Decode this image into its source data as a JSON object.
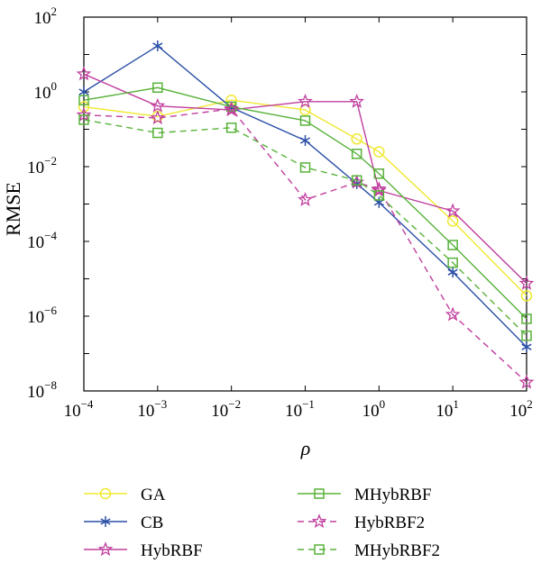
{
  "chart_data": {
    "type": "line",
    "title": "",
    "xlabel": "ρ",
    "ylabel": "RMSE",
    "x_scale": "log",
    "y_scale": "log",
    "xlim": [
      0.0001,
      100
    ],
    "ylim": [
      1e-08,
      100
    ],
    "x_ticks": [
      {
        "base": "10",
        "exp": "−4"
      },
      {
        "base": "10",
        "exp": "−3"
      },
      {
        "base": "10",
        "exp": "−2"
      },
      {
        "base": "10",
        "exp": "−1"
      },
      {
        "base": "10",
        "exp": "0"
      },
      {
        "base": "10",
        "exp": "1"
      },
      {
        "base": "10",
        "exp": "2"
      }
    ],
    "y_ticks": [
      {
        "base": "10",
        "exp": "−8"
      },
      {
        "base": "10",
        "exp": "−6"
      },
      {
        "base": "10",
        "exp": "−4"
      },
      {
        "base": "10",
        "exp": "−2"
      },
      {
        "base": "10",
        "exp": "0"
      },
      {
        "base": "10",
        "exp": "2"
      }
    ],
    "grid": false,
    "legend_position": "bottom",
    "x": [
      0.0001,
      0.001,
      0.01,
      0.1,
      0.5,
      1,
      10,
      100
    ],
    "series": [
      {
        "name": "GA",
        "color": "#f0e832",
        "dash": "solid",
        "marker": "circle",
        "values": [
          0.4,
          0.22,
          0.6,
          0.33,
          0.055,
          0.025,
          0.00035,
          3.5e-06
        ]
      },
      {
        "name": "CB",
        "color": "#2a4fa6",
        "dash": "solid",
        "marker": "asterisk",
        "values": [
          1.0,
          17,
          0.38,
          0.05,
          0.0035,
          0.0011,
          1.5e-05,
          1.5e-07
        ]
      },
      {
        "name": "HybRBF",
        "color": "#c03e9e",
        "dash": "solid",
        "marker": "star",
        "values": [
          3.0,
          0.42,
          0.33,
          0.55,
          0.55,
          0.0023,
          0.00065,
          7.5e-06
        ]
      },
      {
        "name": "MHybRBF",
        "color": "#58b23a",
        "dash": "solid",
        "marker": "square",
        "values": [
          0.6,
          1.3,
          0.4,
          0.17,
          0.022,
          0.0065,
          8e-05,
          8.5e-07
        ]
      },
      {
        "name": "HybRBF2",
        "color": "#c03e9e",
        "dash": "dashed",
        "marker": "star",
        "values": [
          0.24,
          0.2,
          0.35,
          0.0013,
          0.0038,
          0.0025,
          1.1e-06,
          1.7e-08
        ]
      },
      {
        "name": "MHybRBF2",
        "color": "#58b23a",
        "dash": "dashed",
        "marker": "square",
        "values": [
          0.18,
          0.08,
          0.11,
          0.0095,
          0.0043,
          0.0017,
          2.7e-05,
          3e-07
        ]
      }
    ]
  }
}
